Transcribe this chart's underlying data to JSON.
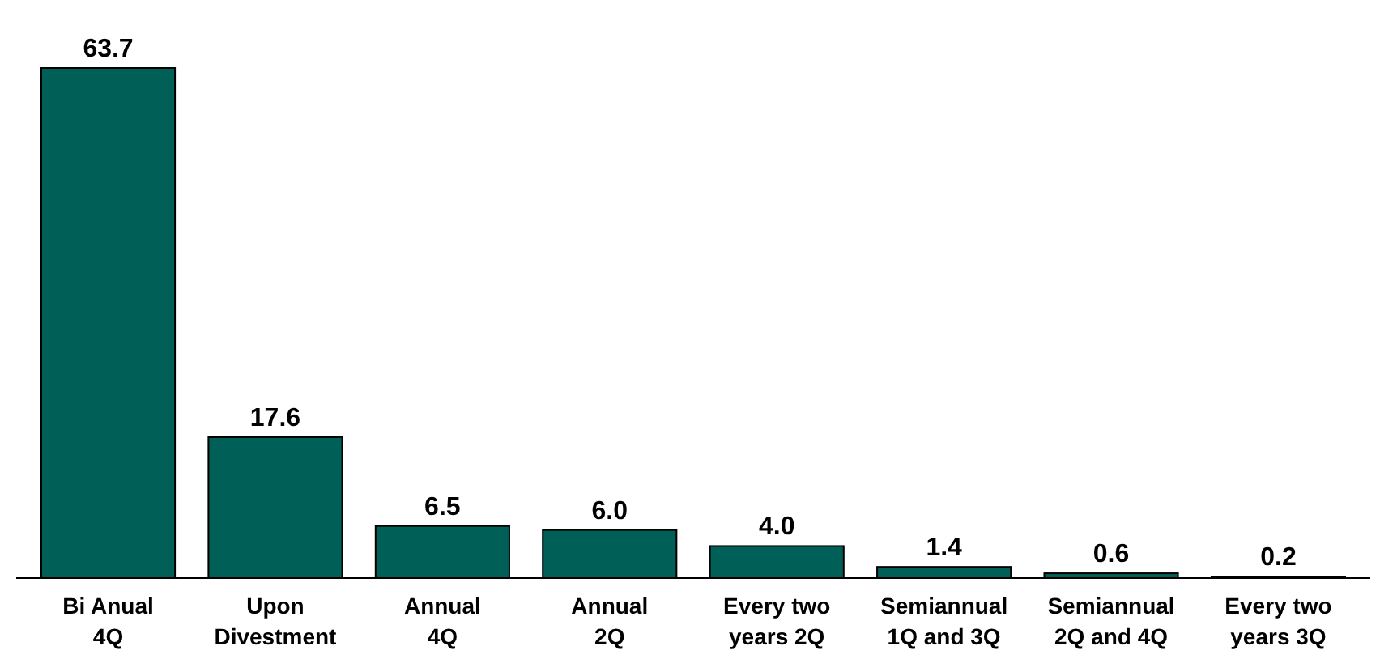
{
  "chart_data": {
    "type": "bar",
    "categories": [
      "Bi Anual\n4Q",
      "Upon\nDivestment",
      "Annual\n4Q",
      "Annual\n2Q",
      "Every two\nyears 2Q",
      "Semiannual\n1Q and 3Q",
      "Semiannual\n2Q and 4Q",
      "Every two\nyears 3Q"
    ],
    "values": [
      63.7,
      17.6,
      6.5,
      6.0,
      4.0,
      1.4,
      0.6,
      0.2
    ],
    "value_labels": [
      "63.7",
      "17.6",
      "6.5",
      "6.0",
      "4.0",
      "1.4",
      "0.6",
      "0.2"
    ],
    "color": "#005f56"
  }
}
